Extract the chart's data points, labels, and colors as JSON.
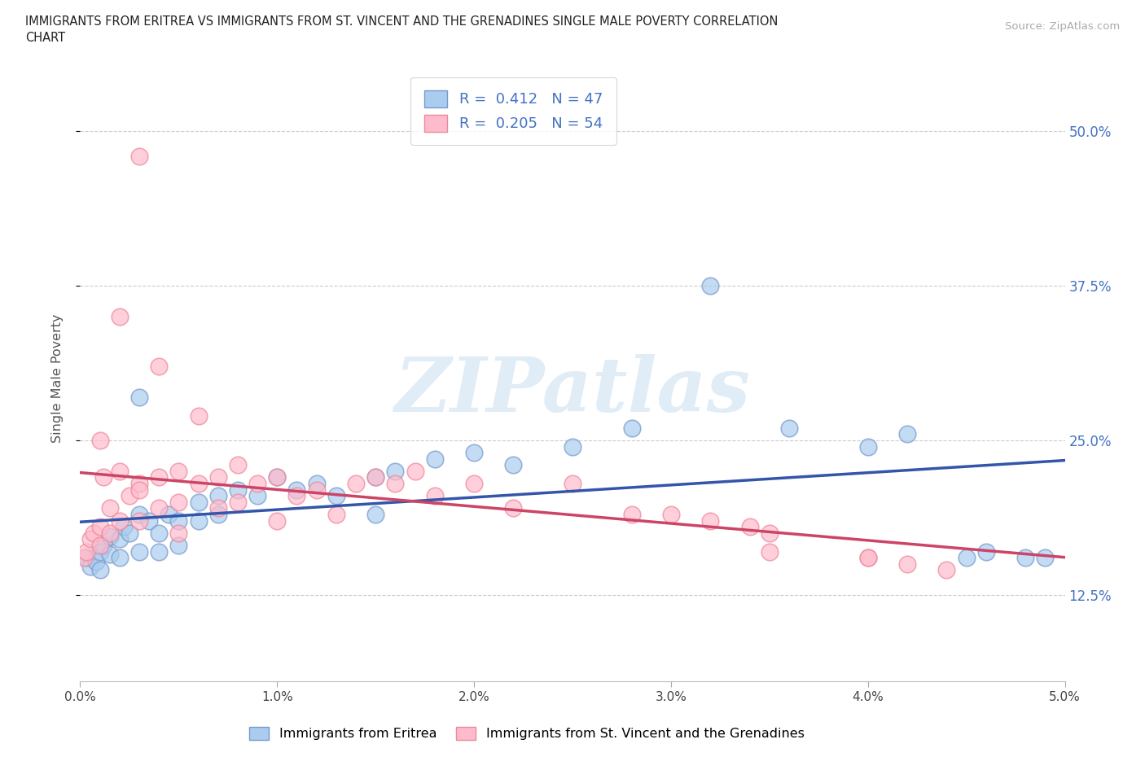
{
  "title_line1": "IMMIGRANTS FROM ERITREA VS IMMIGRANTS FROM ST. VINCENT AND THE GRENADINES SINGLE MALE POVERTY CORRELATION",
  "title_line2": "CHART",
  "source": "Source: ZipAtlas.com",
  "ylabel": "Single Male Poverty",
  "ytick_labels": [
    "12.5%",
    "25.0%",
    "37.5%",
    "50.0%"
  ],
  "ytick_values": [
    0.125,
    0.25,
    0.375,
    0.5
  ],
  "xtick_labels": [
    "0.0%",
    "1.0%",
    "2.0%",
    "3.0%",
    "4.0%",
    "5.0%"
  ],
  "xtick_values": [
    0.0,
    0.01,
    0.02,
    0.03,
    0.04,
    0.05
  ],
  "xmin": 0.0,
  "xmax": 0.05,
  "ymin": 0.055,
  "ymax": 0.545,
  "R_blue": 0.412,
  "N_blue": 47,
  "R_pink": 0.205,
  "N_pink": 54,
  "color_blue_face": "#aaccee",
  "color_blue_edge": "#7799cc",
  "color_pink_face": "#ffbbcc",
  "color_pink_edge": "#ee8899",
  "color_blue_line": "#3355aa",
  "color_pink_line": "#cc4466",
  "legend_label_blue": "Immigrants from Eritrea",
  "legend_label_pink": "Immigrants from St. Vincent and the Grenadines",
  "legend_R_color": "#4472c4",
  "legend_N_color": "#4472c4",
  "watermark": "ZIPatlas",
  "blue_x": [
    0.0003,
    0.0005,
    0.0008,
    0.001,
    0.001,
    0.0012,
    0.0015,
    0.0015,
    0.002,
    0.002,
    0.0022,
    0.0025,
    0.003,
    0.003,
    0.0035,
    0.004,
    0.004,
    0.0045,
    0.005,
    0.005,
    0.006,
    0.006,
    0.007,
    0.007,
    0.008,
    0.009,
    0.01,
    0.011,
    0.012,
    0.013,
    0.015,
    0.015,
    0.016,
    0.018,
    0.02,
    0.022,
    0.025,
    0.028,
    0.032,
    0.036,
    0.04,
    0.042,
    0.045,
    0.046,
    0.048,
    0.049,
    0.003
  ],
  "blue_y": [
    0.155,
    0.148,
    0.152,
    0.16,
    0.145,
    0.165,
    0.158,
    0.172,
    0.17,
    0.155,
    0.18,
    0.175,
    0.19,
    0.16,
    0.185,
    0.175,
    0.16,
    0.19,
    0.185,
    0.165,
    0.2,
    0.185,
    0.205,
    0.19,
    0.21,
    0.205,
    0.22,
    0.21,
    0.215,
    0.205,
    0.22,
    0.19,
    0.225,
    0.235,
    0.24,
    0.23,
    0.245,
    0.26,
    0.375,
    0.26,
    0.245,
    0.255,
    0.155,
    0.16,
    0.155,
    0.155,
    0.285
  ],
  "pink_x": [
    0.0002,
    0.0003,
    0.0005,
    0.0007,
    0.001,
    0.001,
    0.001,
    0.0012,
    0.0015,
    0.0015,
    0.002,
    0.002,
    0.002,
    0.0025,
    0.003,
    0.003,
    0.003,
    0.004,
    0.004,
    0.005,
    0.005,
    0.005,
    0.006,
    0.006,
    0.007,
    0.007,
    0.008,
    0.008,
    0.009,
    0.01,
    0.01,
    0.011,
    0.012,
    0.013,
    0.014,
    0.015,
    0.016,
    0.017,
    0.018,
    0.02,
    0.022,
    0.025,
    0.028,
    0.03,
    0.032,
    0.034,
    0.035,
    0.035,
    0.04,
    0.04,
    0.042,
    0.044,
    0.003,
    0.004
  ],
  "pink_y": [
    0.155,
    0.16,
    0.17,
    0.175,
    0.25,
    0.18,
    0.165,
    0.22,
    0.195,
    0.175,
    0.35,
    0.225,
    0.185,
    0.205,
    0.215,
    0.21,
    0.185,
    0.22,
    0.195,
    0.225,
    0.2,
    0.175,
    0.27,
    0.215,
    0.22,
    0.195,
    0.23,
    0.2,
    0.215,
    0.22,
    0.185,
    0.205,
    0.21,
    0.19,
    0.215,
    0.22,
    0.215,
    0.225,
    0.205,
    0.215,
    0.195,
    0.215,
    0.19,
    0.19,
    0.185,
    0.18,
    0.175,
    0.16,
    0.155,
    0.155,
    0.15,
    0.145,
    0.48,
    0.31
  ]
}
